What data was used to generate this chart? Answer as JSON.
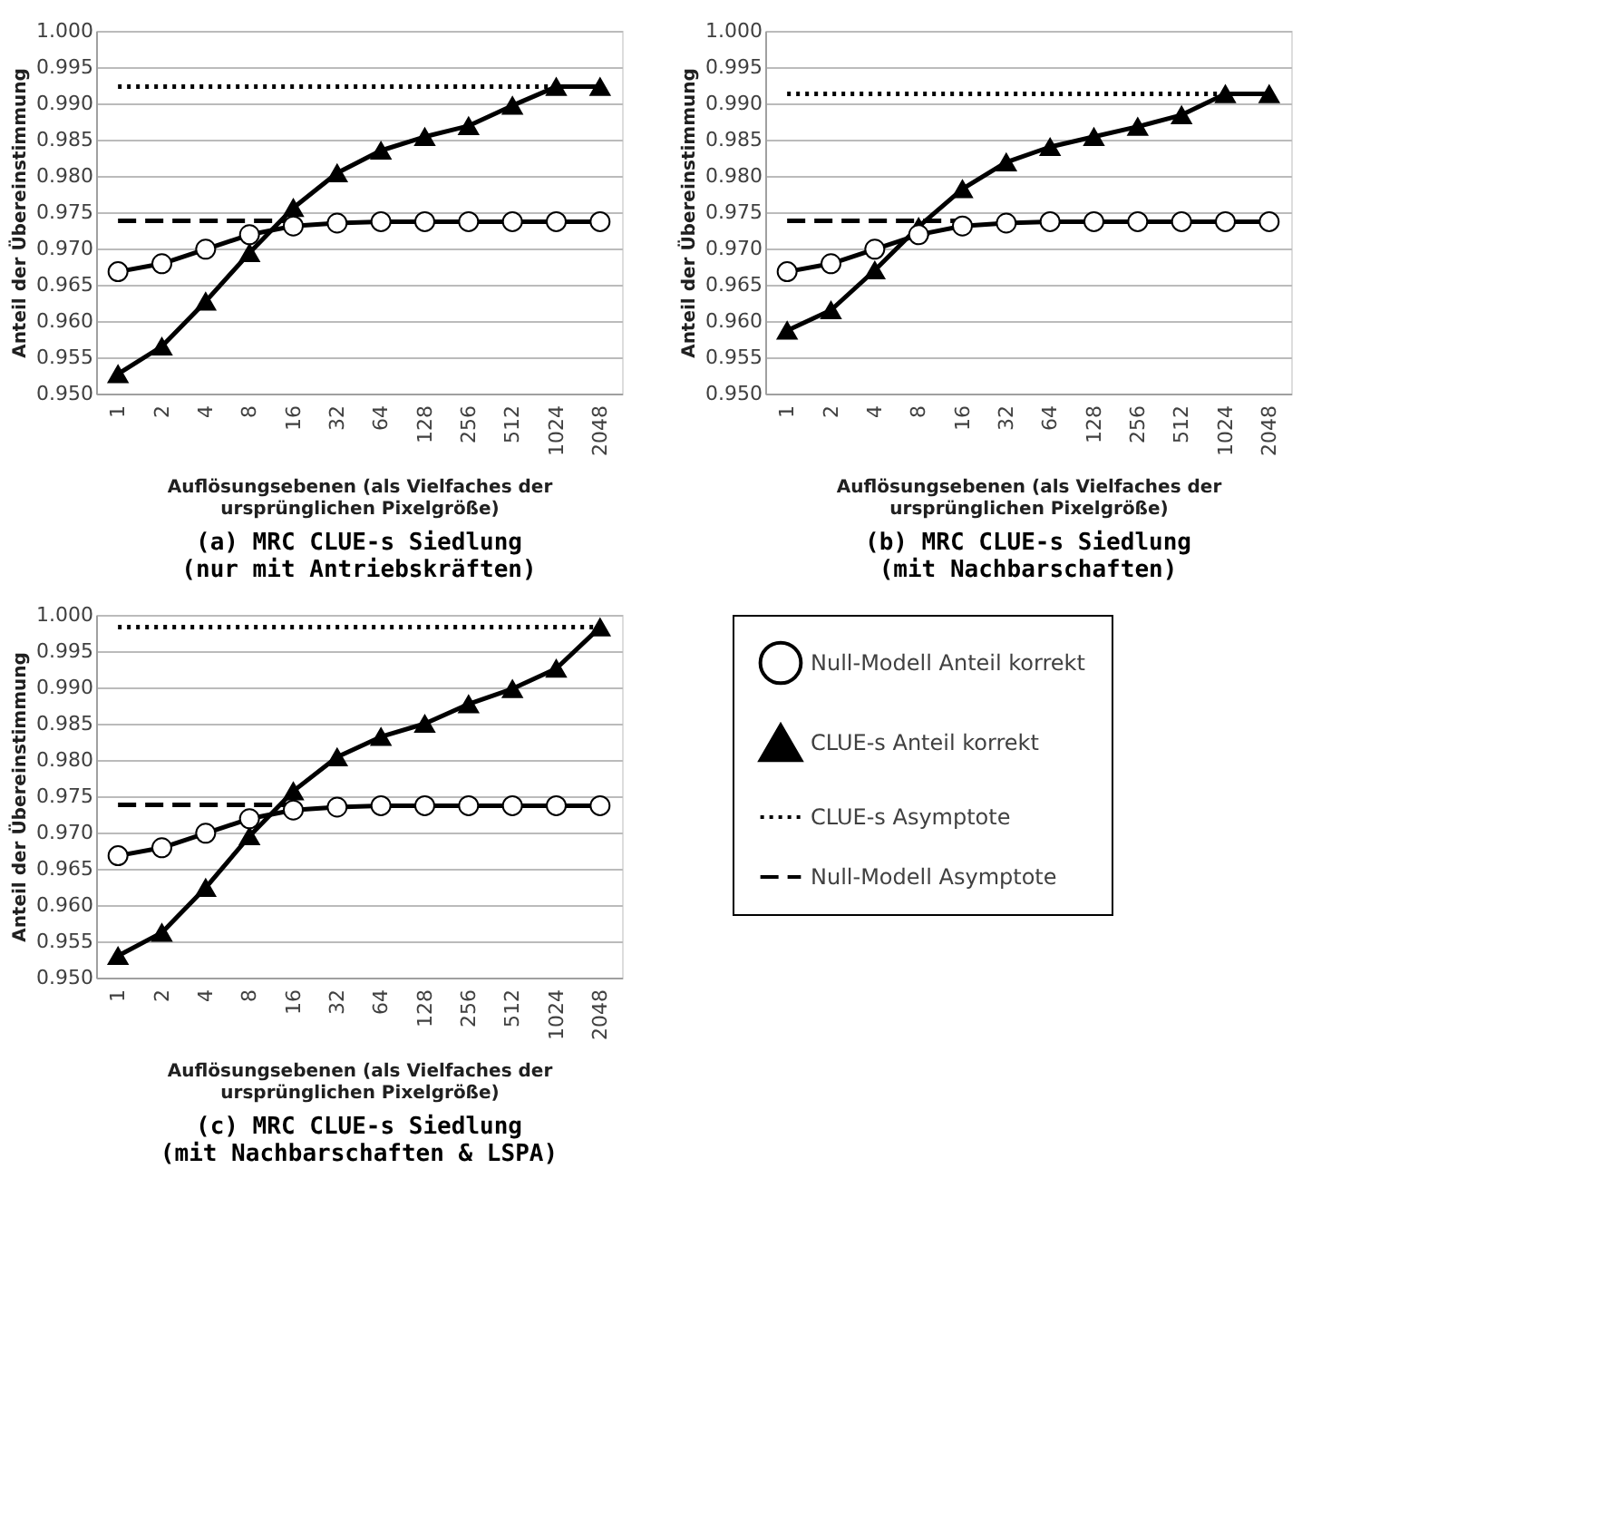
{
  "chart_data": [
    {
      "type": "line",
      "title": "(a) MRC CLUE-s Siedlung\n(nur mit Antriebskräften)",
      "xlabel": "Auflösungsebenen (als Vielfaches der\nursprünglichen Pixelgröße)",
      "ylabel": "Anteil der Übereinstimmung",
      "categories": [
        "1",
        "2",
        "4",
        "8",
        "16",
        "32",
        "64",
        "128",
        "256",
        "512",
        "1024",
        "2048"
      ],
      "ylim": [
        0.95,
        1.0
      ],
      "yticks": [
        {
          "value": 0.95,
          "label": "0.950"
        },
        {
          "value": 0.955,
          "label": "0.955"
        },
        {
          "value": 0.96,
          "label": "0.960"
        },
        {
          "value": 0.965,
          "label": "0.965"
        },
        {
          "value": 0.97,
          "label": "0.970"
        },
        {
          "value": 0.975,
          "label": "0.975"
        },
        {
          "value": 0.98,
          "label": "0.980"
        },
        {
          "value": 0.985,
          "label": "0.985"
        },
        {
          "value": 0.99,
          "label": "0.990"
        },
        {
          "value": 0.995,
          "label": "0.995"
        },
        {
          "value": 1.0,
          "label": "1.000"
        }
      ],
      "grid": "y",
      "legend": false,
      "series": [
        {
          "color": "#000000",
          "marker": "circle",
          "line_style": "solid",
          "values": [
            0.9668,
            0.9679,
            0.9699,
            0.9719,
            0.9731,
            0.9735,
            0.9737,
            0.9737,
            0.9737,
            0.9737,
            0.9737,
            0.9737
          ]
        },
        {
          "color": "#000000",
          "marker": "triangle",
          "line_style": "solid",
          "values": [
            0.9527,
            0.9565,
            0.9627,
            0.9694,
            0.9756,
            0.9804,
            0.9835,
            0.9854,
            0.9869,
            0.9897,
            0.9923,
            0.9923
          ]
        },
        {
          "color": "#000000",
          "marker": "none",
          "line_style": "dotted",
          "values": [
            0.9923,
            0.9923,
            0.9923,
            0.9923,
            0.9923,
            0.9923,
            0.9923,
            0.9923,
            0.9923,
            0.9923,
            0.9923,
            null
          ]
        },
        {
          "color": "#000000",
          "marker": "none",
          "line_style": "dashed",
          "values": [
            0.9738,
            0.9738,
            0.9738,
            0.9738,
            0.9738,
            null,
            null,
            null,
            null,
            null,
            null,
            null
          ]
        }
      ]
    },
    {
      "type": "line",
      "title": "(b) MRC CLUE-s Siedlung\n(mit Nachbarschaften)",
      "xlabel": "Auflösungsebenen (als Vielfaches der\nursprünglichen Pixelgröße)",
      "ylabel": "Anteil der Übereinstimmung",
      "categories": [
        "1",
        "2",
        "4",
        "8",
        "16",
        "32",
        "64",
        "128",
        "256",
        "512",
        "1024",
        "2048"
      ],
      "ylim": [
        0.95,
        1.0
      ],
      "yticks": [
        {
          "value": 0.95,
          "label": "0.950"
        },
        {
          "value": 0.955,
          "label": "0.955"
        },
        {
          "value": 0.96,
          "label": "0.960"
        },
        {
          "value": 0.965,
          "label": "0.965"
        },
        {
          "value": 0.97,
          "label": "0.970"
        },
        {
          "value": 0.975,
          "label": "0.975"
        },
        {
          "value": 0.98,
          "label": "0.980"
        },
        {
          "value": 0.985,
          "label": "0.985"
        },
        {
          "value": 0.99,
          "label": "0.990"
        },
        {
          "value": 0.995,
          "label": "0.995"
        },
        {
          "value": 1.0,
          "label": "1.000"
        }
      ],
      "grid": "y",
      "legend": false,
      "series": [
        {
          "color": "#000000",
          "marker": "circle",
          "line_style": "solid",
          "values": [
            0.9668,
            0.9679,
            0.9699,
            0.9719,
            0.9731,
            0.9735,
            0.9737,
            0.9737,
            0.9737,
            0.9737,
            0.9737,
            0.9737
          ]
        },
        {
          "color": "#000000",
          "marker": "triangle",
          "line_style": "solid",
          "values": [
            0.9587,
            0.9615,
            0.967,
            0.973,
            0.9782,
            0.9819,
            0.984,
            0.9854,
            0.9868,
            0.9884,
            0.9913,
            0.9913
          ]
        },
        {
          "color": "#000000",
          "marker": "none",
          "line_style": "dotted",
          "values": [
            0.9913,
            0.9913,
            0.9913,
            0.9913,
            0.9913,
            0.9913,
            0.9913,
            0.9913,
            0.9913,
            0.9913,
            0.9913,
            null
          ]
        },
        {
          "color": "#000000",
          "marker": "none",
          "line_style": "dashed",
          "values": [
            0.9738,
            0.9738,
            0.9738,
            0.9738,
            0.9738,
            null,
            null,
            null,
            null,
            null,
            null,
            null
          ]
        }
      ]
    },
    {
      "type": "line",
      "title": "(c) MRC CLUE-s Siedlung\n(mit Nachbarschaften & LSPA)",
      "xlabel": "Auflösungsebenen (als Vielfaches der\nursprünglichen Pixelgröße)",
      "ylabel": "Anteil der Übereinstimmung",
      "categories": [
        "1",
        "2",
        "4",
        "8",
        "16",
        "32",
        "64",
        "128",
        "256",
        "512",
        "1024",
        "2048"
      ],
      "ylim": [
        0.95,
        1.0
      ],
      "yticks": [
        {
          "value": 0.95,
          "label": "0.950"
        },
        {
          "value": 0.955,
          "label": "0.955"
        },
        {
          "value": 0.96,
          "label": "0.960"
        },
        {
          "value": 0.965,
          "label": "0.965"
        },
        {
          "value": 0.97,
          "label": "0.970"
        },
        {
          "value": 0.975,
          "label": "0.975"
        },
        {
          "value": 0.98,
          "label": "0.980"
        },
        {
          "value": 0.985,
          "label": "0.985"
        },
        {
          "value": 0.99,
          "label": "0.990"
        },
        {
          "value": 0.995,
          "label": "0.995"
        },
        {
          "value": 1.0,
          "label": "1.000"
        }
      ],
      "grid": "y",
      "legend": "right",
      "series": [
        {
          "name": "Null-Modell Anteil korrekt",
          "color": "#000000",
          "marker": "circle",
          "line_style": "solid",
          "values": [
            0.9668,
            0.9679,
            0.9699,
            0.9719,
            0.9731,
            0.9735,
            0.9737,
            0.9737,
            0.9737,
            0.9737,
            0.9737,
            0.9737
          ]
        },
        {
          "name": "CLUE-s Anteil korrekt",
          "color": "#000000",
          "marker": "triangle",
          "line_style": "solid",
          "values": [
            0.953,
            0.9562,
            0.9624,
            0.9695,
            0.9757,
            0.9804,
            0.9832,
            0.985,
            0.9877,
            0.9898,
            0.9926,
            0.9983
          ]
        },
        {
          "name": "CLUE-s Asymptote",
          "color": "#000000",
          "marker": "none",
          "line_style": "dotted",
          "values": [
            0.9983,
            0.9983,
            0.9983,
            0.9983,
            0.9983,
            0.9983,
            0.9983,
            0.9983,
            0.9983,
            0.9983,
            0.9983,
            0.9983
          ]
        },
        {
          "name": "Null-Modell Asymptote",
          "color": "#000000",
          "marker": "none",
          "line_style": "dashed",
          "values": [
            0.9738,
            0.9738,
            0.9738,
            0.9738,
            0.9738,
            null,
            null,
            null,
            null,
            null,
            null,
            null
          ]
        }
      ]
    }
  ]
}
